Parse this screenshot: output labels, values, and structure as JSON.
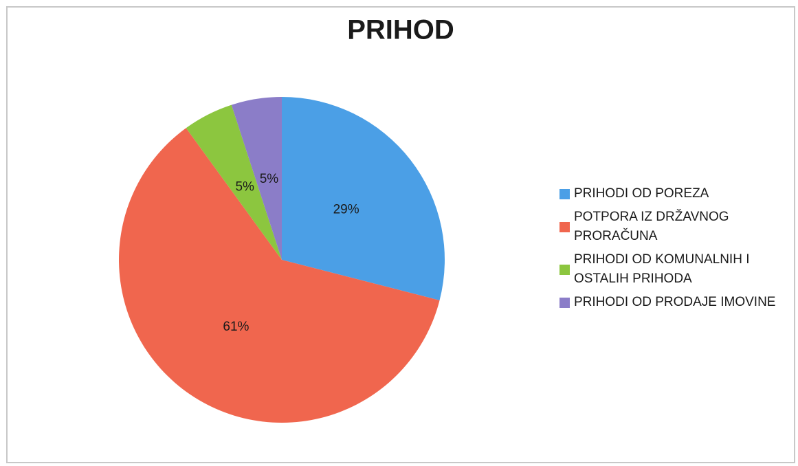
{
  "chart_data": {
    "type": "pie",
    "title": "PRIHOD",
    "categories": [
      "PRIHODI OD POREZA",
      "POTPORA IZ DRŽAVNOG PRORAČUNA",
      "PRIHODI OD KOMUNALNIH I OSTALIH PRIHODA",
      "PRIHODI OD PRODAJE IMOVINE"
    ],
    "values": [
      29,
      61,
      5,
      5
    ],
    "value_labels": [
      "29%",
      "61%",
      "5%",
      "5%"
    ],
    "colors": [
      "#4b9fe6",
      "#f0664e",
      "#8cc63f",
      "#8b7dc8"
    ],
    "legend": "right"
  }
}
